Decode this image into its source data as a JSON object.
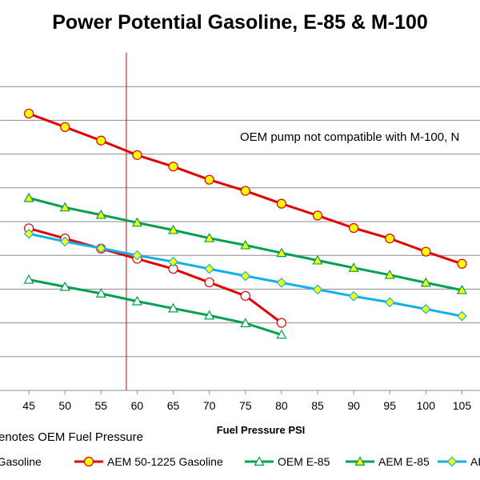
{
  "chart_data": {
    "type": "line",
    "title": "Power Potential Gasoline, E-85 & M-100",
    "xlabel": "Fuel Pressure PSI",
    "ylabel": "",
    "x_ticks": [
      45,
      50,
      55,
      60,
      65,
      70,
      75,
      80,
      85,
      90,
      95,
      100,
      105
    ],
    "xlim": [
      41,
      107.5
    ],
    "ylim": [
      0,
      10
    ],
    "y_gridlines": [
      1,
      2,
      3,
      4,
      5,
      6,
      7,
      8,
      9
    ],
    "grid": true,
    "legend_position": "bottom",
    "reference_line": {
      "x": 58.5,
      "color": "#e00000"
    },
    "annotation": "OEM pump not compatible with M-100, N",
    "note": "enotes OEM Fuel Pressure",
    "series": [
      {
        "name": "M Gasoline",
        "color": "#e00000",
        "marker": "circle-open",
        "marker_fill": "#ffffff",
        "x": [
          45,
          50,
          55,
          60,
          65,
          70,
          75,
          80
        ],
        "y": [
          4.8,
          4.5,
          4.2,
          3.9,
          3.6,
          3.2,
          2.8,
          2.0
        ]
      },
      {
        "name": "AEM 50-1225 Gasoline",
        "color": "#e00000",
        "marker": "circle",
        "marker_fill": "#ffff00",
        "x": [
          45,
          50,
          55,
          60,
          65,
          70,
          75,
          80,
          85,
          90,
          95,
          100,
          105
        ],
        "y": [
          8.2,
          7.8,
          7.4,
          6.97,
          6.63,
          6.24,
          5.91,
          5.53,
          5.18,
          4.81,
          4.5,
          4.11,
          3.75
        ]
      },
      {
        "name": "OEM E-85",
        "color": "#00a050",
        "marker": "triangle-open",
        "marker_fill": "#ffffff",
        "x": [
          45,
          50,
          55,
          60,
          65,
          70,
          75,
          80
        ],
        "y": [
          3.28,
          3.07,
          2.87,
          2.64,
          2.43,
          2.22,
          1.99,
          1.65
        ]
      },
      {
        "name": "AEM E-85",
        "color": "#00a050",
        "marker": "triangle",
        "marker_fill": "#ffff00",
        "x": [
          45,
          50,
          55,
          60,
          65,
          70,
          75,
          80,
          85,
          90,
          95,
          100,
          105
        ],
        "y": [
          5.7,
          5.42,
          5.2,
          4.97,
          4.75,
          4.51,
          4.3,
          4.07,
          3.85,
          3.63,
          3.42,
          3.19,
          2.97
        ]
      },
      {
        "name": "AE",
        "color": "#10b0e8",
        "marker": "diamond",
        "marker_fill": "#ffff00",
        "x": [
          45,
          50,
          55,
          60,
          65,
          70,
          75,
          80,
          85,
          90,
          95,
          100,
          105
        ],
        "y": [
          4.64,
          4.41,
          4.21,
          4.0,
          3.81,
          3.6,
          3.39,
          3.19,
          2.99,
          2.79,
          2.61,
          2.41,
          2.2
        ]
      }
    ]
  }
}
